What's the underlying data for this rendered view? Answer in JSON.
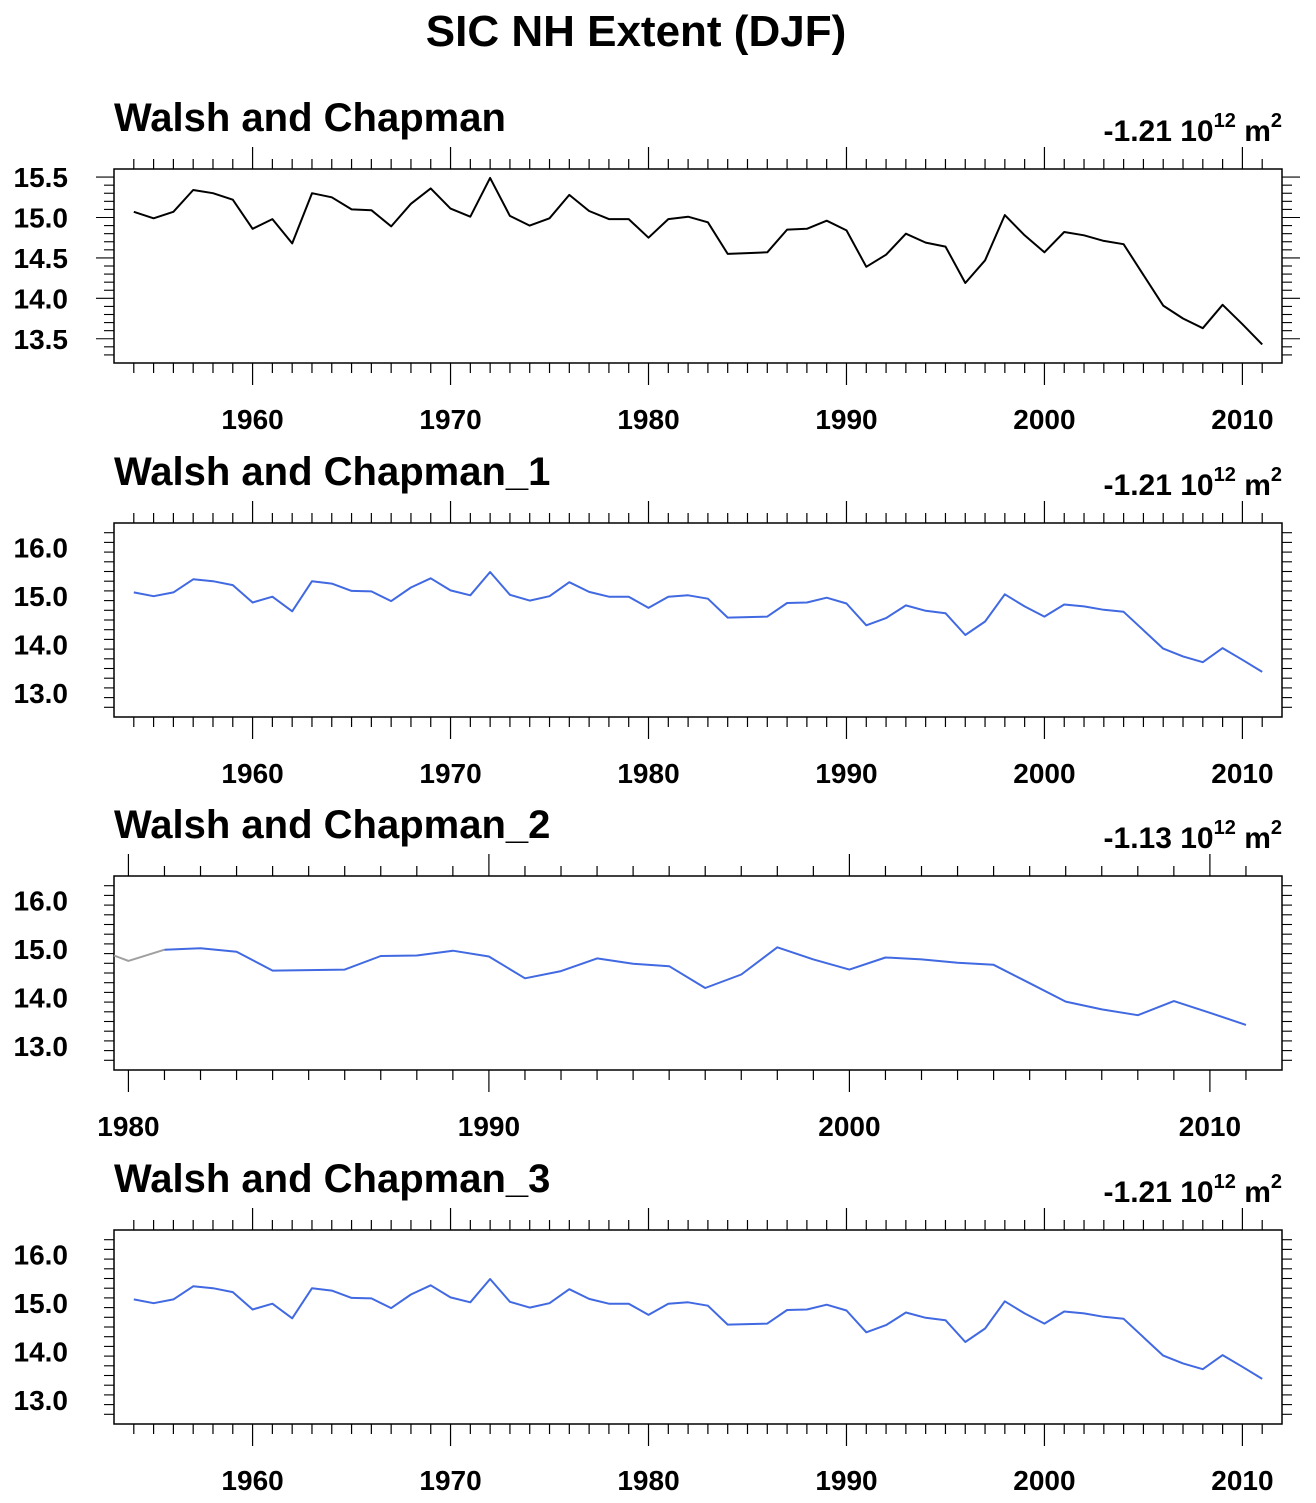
{
  "figure": {
    "title": "SIC NH Extent (DJF)"
  },
  "chart_data": [
    {
      "type": "line",
      "title": "Walsh and Chapman",
      "trend": {
        "value": "-1.21",
        "base": "10",
        "exp": "12",
        "unit": "m",
        "unit_exp": "2"
      },
      "xlim": [
        1953,
        2012
      ],
      "ylim": [
        13.2,
        15.6
      ],
      "xticks": [
        1960,
        1970,
        1980,
        1990,
        2000,
        2010
      ],
      "yticks": [
        13.5,
        14.0,
        14.5,
        15.0,
        15.5
      ],
      "ytick_labels": [
        "13.5",
        "14.0",
        "14.5",
        "15.0",
        "15.5"
      ],
      "grid": false,
      "series": [
        {
          "color": "#000000",
          "x": [
            1954,
            1955,
            1956,
            1957,
            1958,
            1959,
            1960,
            1961,
            1962,
            1963,
            1964,
            1965,
            1966,
            1967,
            1968,
            1969,
            1970,
            1971,
            1972,
            1973,
            1974,
            1975,
            1976,
            1977,
            1978,
            1979,
            1980,
            1981,
            1982,
            1983,
            1984,
            1985,
            1986,
            1987,
            1988,
            1989,
            1990,
            1991,
            1992,
            1993,
            1994,
            1995,
            1996,
            1997,
            1998,
            1999,
            2000,
            2001,
            2002,
            2003,
            2004,
            2005,
            2006,
            2007,
            2008,
            2009,
            2010,
            2011
          ],
          "y": [
            15.07,
            14.99,
            15.07,
            15.34,
            15.3,
            15.22,
            14.86,
            14.98,
            14.68,
            15.3,
            15.25,
            15.1,
            15.09,
            14.89,
            15.17,
            15.36,
            15.11,
            15.01,
            15.49,
            15.02,
            14.9,
            14.99,
            15.28,
            15.08,
            14.98,
            14.98,
            14.75,
            14.98,
            15.01,
            14.94,
            14.55,
            14.56,
            14.57,
            14.85,
            14.86,
            14.96,
            14.84,
            14.39,
            14.54,
            14.8,
            14.69,
            14.64,
            14.19,
            14.47,
            15.03,
            14.78,
            14.57,
            14.82,
            14.78,
            14.71,
            14.67,
            14.29,
            13.91,
            13.75,
            13.63,
            13.92,
            13.68,
            13.43
          ]
        }
      ]
    },
    {
      "type": "line",
      "title": "Walsh and Chapman_1",
      "trend": {
        "value": "-1.21",
        "base": "10",
        "exp": "12",
        "unit": "m",
        "unit_exp": "2"
      },
      "xlim": [
        1953,
        2012
      ],
      "ylim": [
        12.5,
        16.5
      ],
      "xticks": [
        1960,
        1970,
        1980,
        1990,
        2000,
        2010
      ],
      "yticks": [
        13.0,
        14.0,
        15.0,
        16.0
      ],
      "ytick_labels": [
        "13.0",
        "14.0",
        "15.0",
        "16.0"
      ],
      "grid": false,
      "series": [
        {
          "color": "#4169e1",
          "x": [
            1954,
            1955,
            1956,
            1957,
            1958,
            1959,
            1960,
            1961,
            1962,
            1963,
            1964,
            1965,
            1966,
            1967,
            1968,
            1969,
            1970,
            1971,
            1972,
            1973,
            1974,
            1975,
            1976,
            1977,
            1978,
            1979,
            1980,
            1981,
            1982,
            1983,
            1984,
            1985,
            1986,
            1987,
            1988,
            1989,
            1990,
            1991,
            1992,
            1993,
            1994,
            1995,
            1996,
            1997,
            1998,
            1999,
            2000,
            2001,
            2002,
            2003,
            2004,
            2005,
            2006,
            2007,
            2008,
            2009,
            2010,
            2011
          ],
          "y": [
            15.07,
            14.99,
            15.07,
            15.34,
            15.3,
            15.22,
            14.86,
            14.98,
            14.68,
            15.3,
            15.25,
            15.1,
            15.09,
            14.89,
            15.17,
            15.36,
            15.11,
            15.01,
            15.49,
            15.02,
            14.9,
            14.99,
            15.28,
            15.08,
            14.98,
            14.98,
            14.75,
            14.98,
            15.01,
            14.94,
            14.55,
            14.56,
            14.57,
            14.85,
            14.86,
            14.96,
            14.84,
            14.39,
            14.54,
            14.8,
            14.69,
            14.64,
            14.19,
            14.47,
            15.03,
            14.78,
            14.57,
            14.82,
            14.78,
            14.71,
            14.67,
            14.29,
            13.91,
            13.75,
            13.63,
            13.92,
            13.68,
            13.43
          ]
        }
      ]
    },
    {
      "type": "line",
      "title": "Walsh and Chapman_2",
      "trend": {
        "value": "-1.13",
        "base": "10",
        "exp": "12",
        "unit": "m",
        "unit_exp": "2"
      },
      "xlim": [
        1979.6,
        2012
      ],
      "ylim": [
        12.5,
        16.5
      ],
      "xticks": [
        1980,
        1990,
        2000,
        2010
      ],
      "yticks": [
        13.0,
        14.0,
        15.0,
        16.0
      ],
      "ytick_labels": [
        "13.0",
        "14.0",
        "15.0",
        "16.0"
      ],
      "grid": false,
      "series": [
        {
          "color": "#a0a0a0",
          "x": [
            1979.6,
            1980,
            1981
          ],
          "y": [
            14.86,
            14.75,
            14.98
          ]
        },
        {
          "color": "#4169e1",
          "x": [
            1981,
            1982,
            1983,
            1984,
            1985,
            1986,
            1987,
            1988,
            1989,
            1990,
            1991,
            1992,
            1993,
            1994,
            1995,
            1996,
            1997,
            1998,
            1999,
            2000,
            2001,
            2002,
            2003,
            2004,
            2005,
            2006,
            2007,
            2008,
            2009,
            2010,
            2011
          ],
          "y": [
            14.98,
            15.01,
            14.94,
            14.55,
            14.56,
            14.57,
            14.85,
            14.86,
            14.96,
            14.84,
            14.39,
            14.54,
            14.8,
            14.69,
            14.64,
            14.19,
            14.47,
            15.03,
            14.78,
            14.57,
            14.82,
            14.78,
            14.71,
            14.67,
            14.29,
            13.91,
            13.75,
            13.63,
            13.92,
            13.68,
            13.43
          ]
        }
      ]
    },
    {
      "type": "line",
      "title": "Walsh and Chapman_3",
      "trend": {
        "value": "-1.21",
        "base": "10",
        "exp": "12",
        "unit": "m",
        "unit_exp": "2"
      },
      "xlim": [
        1953,
        2012
      ],
      "ylim": [
        12.5,
        16.5
      ],
      "xticks": [
        1960,
        1970,
        1980,
        1990,
        2000,
        2010
      ],
      "yticks": [
        13.0,
        14.0,
        15.0,
        16.0
      ],
      "ytick_labels": [
        "13.0",
        "14.0",
        "15.0",
        "16.0"
      ],
      "grid": false,
      "series": [
        {
          "color": "#4169e1",
          "x": [
            1954,
            1955,
            1956,
            1957,
            1958,
            1959,
            1960,
            1961,
            1962,
            1963,
            1964,
            1965,
            1966,
            1967,
            1968,
            1969,
            1970,
            1971,
            1972,
            1973,
            1974,
            1975,
            1976,
            1977,
            1978,
            1979,
            1980,
            1981,
            1982,
            1983,
            1984,
            1985,
            1986,
            1987,
            1988,
            1989,
            1990,
            1991,
            1992,
            1993,
            1994,
            1995,
            1996,
            1997,
            1998,
            1999,
            2000,
            2001,
            2002,
            2003,
            2004,
            2005,
            2006,
            2007,
            2008,
            2009,
            2010,
            2011
          ],
          "y": [
            15.07,
            14.99,
            15.07,
            15.34,
            15.3,
            15.22,
            14.86,
            14.98,
            14.68,
            15.3,
            15.25,
            15.1,
            15.09,
            14.89,
            15.17,
            15.36,
            15.11,
            15.01,
            15.49,
            15.02,
            14.9,
            14.99,
            15.28,
            15.08,
            14.98,
            14.98,
            14.75,
            14.98,
            15.01,
            14.94,
            14.55,
            14.56,
            14.57,
            14.85,
            14.86,
            14.96,
            14.84,
            14.39,
            14.54,
            14.8,
            14.69,
            14.64,
            14.19,
            14.47,
            15.03,
            14.78,
            14.57,
            14.82,
            14.78,
            14.71,
            14.67,
            14.29,
            13.91,
            13.75,
            13.63,
            13.92,
            13.68,
            13.43
          ]
        }
      ]
    }
  ]
}
